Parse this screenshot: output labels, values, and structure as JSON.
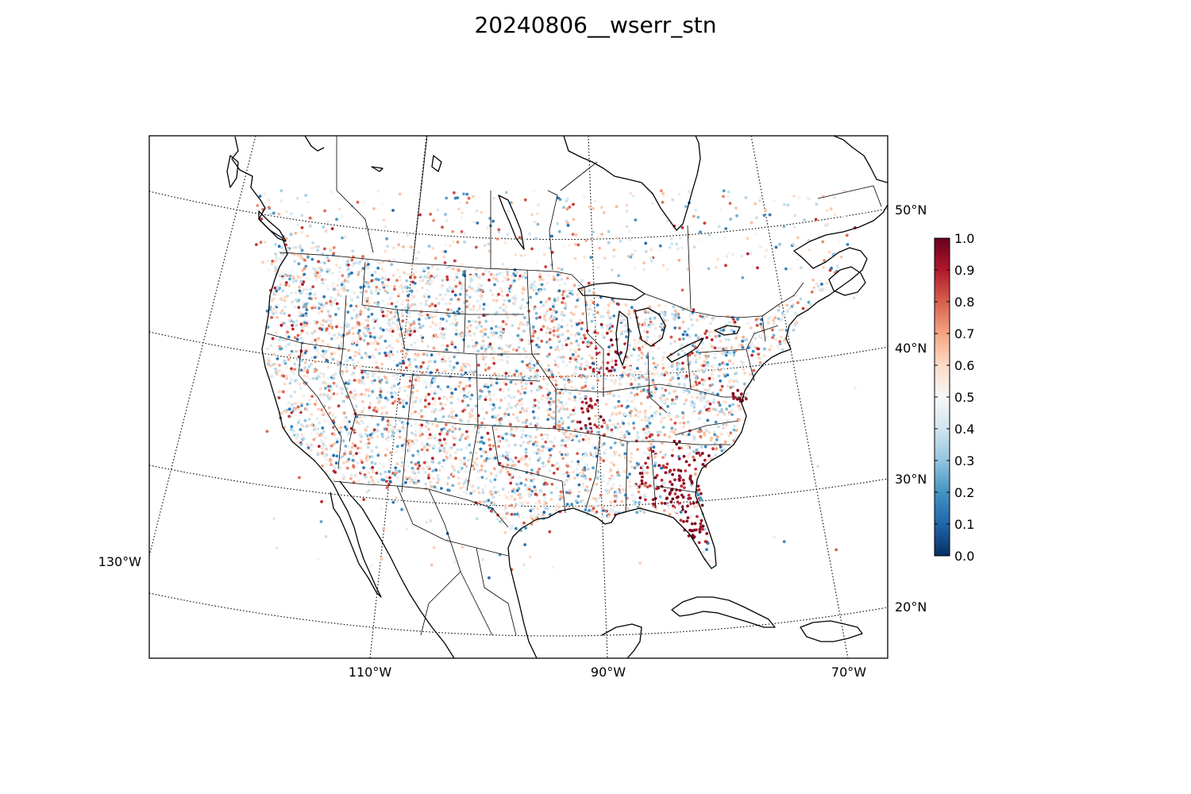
{
  "title": "20240806__wserr_stn",
  "map": {
    "projection": "lambert-conformal",
    "lon_ticks": [
      {
        "label": "110°W"
      },
      {
        "label": "90°W"
      },
      {
        "label": "70°W"
      }
    ],
    "lon_tick_left": {
      "label": "130°W"
    },
    "lat_ticks": [
      {
        "label": "50°N"
      },
      {
        "label": "40°N"
      },
      {
        "label": "30°N"
      },
      {
        "label": "20°N"
      }
    ]
  },
  "colorbar": {
    "colormap": "RdBu_r",
    "vmin": 0.0,
    "vmax": 1.0,
    "colors": [
      "#053061",
      "#2166ac",
      "#4393c3",
      "#92c5de",
      "#d1e5f0",
      "#f7f7f7",
      "#fddbc7",
      "#f4a582",
      "#d6604d",
      "#b2182b",
      "#67001f"
    ],
    "ticks": [
      "0.0",
      "0.1",
      "0.2",
      "0.3",
      "0.4",
      "0.5",
      "0.6",
      "0.7",
      "0.8",
      "0.9",
      "1.0"
    ]
  },
  "stations": {
    "marker": "dot",
    "field": "wserr",
    "high_value_regions": [
      "Georgia",
      "Florida",
      "South Carolina",
      "Illinois",
      "Wisconsin",
      "Missouri"
    ]
  }
}
